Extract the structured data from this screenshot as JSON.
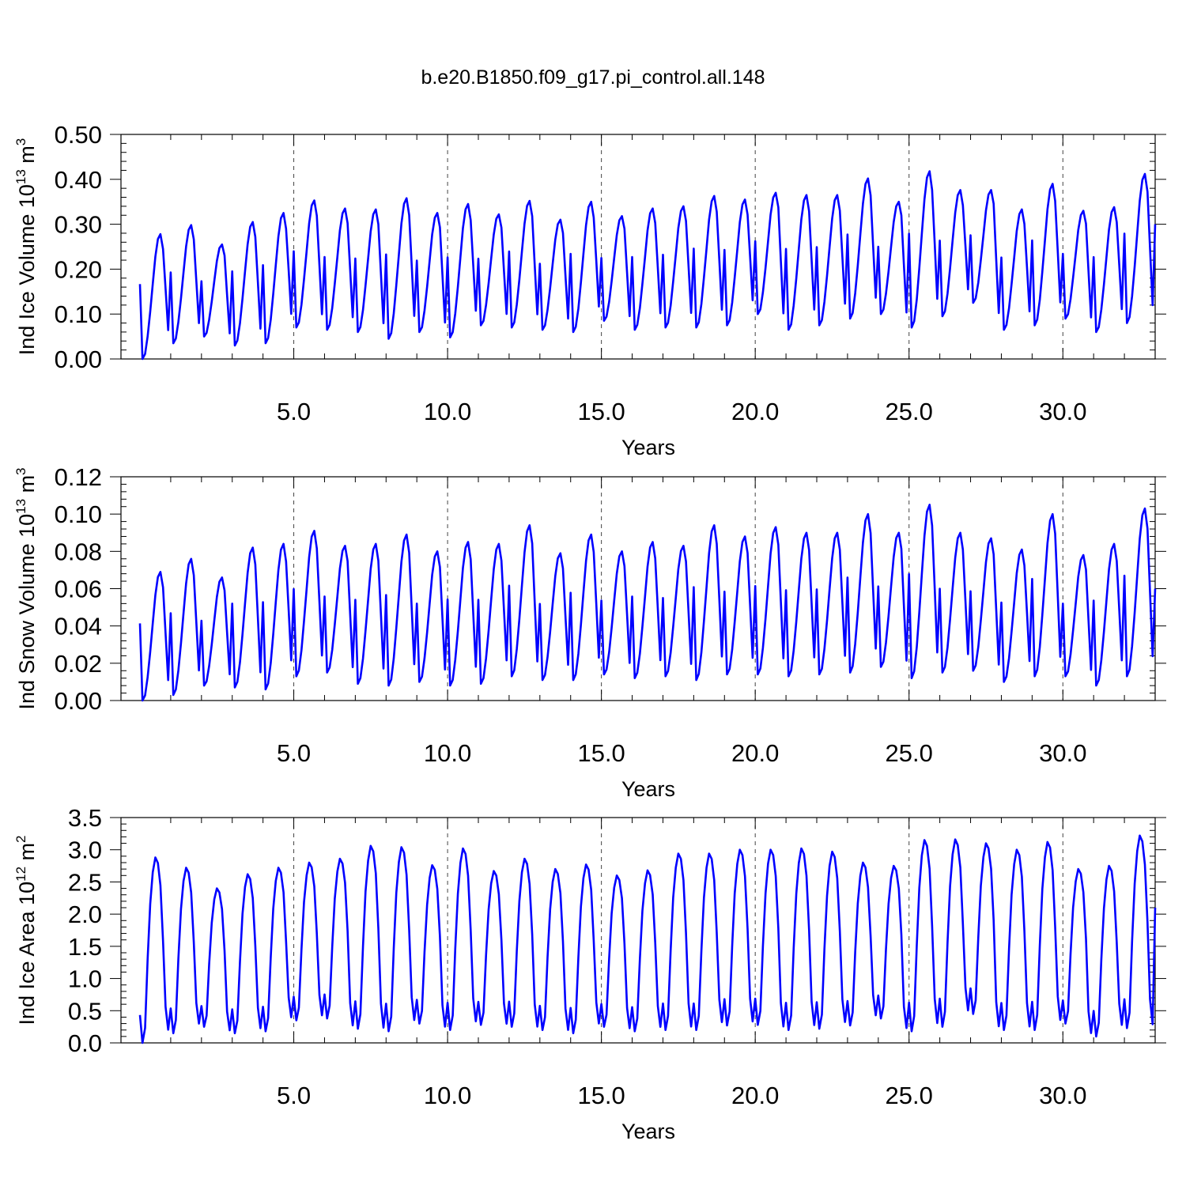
{
  "figure": {
    "title": "b.e20.B1850.f09_g17.pi_control.all.148"
  },
  "chart_data": [
    {
      "type": "line",
      "id": "ice-volume",
      "xlabel": "Years",
      "ylabel": "Ind Ice Volume 10",
      "ylabel_exp": "13",
      "ylabel_unit": " m",
      "ylabel_unit_exp": "3",
      "xlim": [
        0,
        33
      ],
      "ylim": [
        0,
        0.5
      ],
      "xticks": [
        5,
        10,
        15,
        20,
        25,
        30
      ],
      "xticklabels": [
        "5.0",
        "10.0",
        "15.0",
        "20.0",
        "25.0",
        "30.0"
      ],
      "yticks": [
        0,
        0.1,
        0.2,
        0.3,
        0.4,
        0.5
      ],
      "yticklabels": [
        "0.00",
        "0.10",
        "0.20",
        "0.30",
        "0.40",
        "0.50"
      ],
      "grid": "x-major-dashed",
      "color": "#0000ff",
      "min_month": 1,
      "seasonal_shape": [
        0.6,
        0.0,
        0.04,
        0.18,
        0.38,
        0.6,
        0.82,
        0.96,
        1.0,
        0.88,
        0.5,
        0.12
      ],
      "annual_min": [
        0.0,
        0.035,
        0.05,
        0.03,
        0.035,
        0.07,
        0.065,
        0.06,
        0.045,
        0.06,
        0.048,
        0.075,
        0.07,
        0.065,
        0.06,
        0.085,
        0.065,
        0.07,
        0.07,
        0.075,
        0.1,
        0.065,
        0.075,
        0.09,
        0.1,
        0.07,
        0.095,
        0.125,
        0.065,
        0.075,
        0.09,
        0.06,
        0.08
      ],
      "annual_max": [
        0.278,
        0.298,
        0.255,
        0.305,
        0.325,
        0.353,
        0.335,
        0.333,
        0.358,
        0.325,
        0.345,
        0.322,
        0.352,
        0.31,
        0.35,
        0.318,
        0.335,
        0.34,
        0.363,
        0.355,
        0.37,
        0.365,
        0.365,
        0.402,
        0.35,
        0.418,
        0.376,
        0.376,
        0.333,
        0.39,
        0.33,
        0.338,
        0.412
      ],
      "last_value": 0.3
    },
    {
      "type": "line",
      "id": "snow-volume",
      "xlabel": "Years",
      "ylabel": "Ind Snow Volume 10",
      "ylabel_exp": "13",
      "ylabel_unit": " m",
      "ylabel_unit_exp": "3",
      "xlim": [
        0,
        33
      ],
      "ylim": [
        0,
        0.12
      ],
      "xticks": [
        5,
        10,
        15,
        20,
        25,
        30
      ],
      "xticklabels": [
        "5.0",
        "10.0",
        "15.0",
        "20.0",
        "25.0",
        "30.0"
      ],
      "yticks": [
        0,
        0.02,
        0.04,
        0.06,
        0.08,
        0.1,
        0.12
      ],
      "yticklabels": [
        "0.00",
        "0.02",
        "0.04",
        "0.06",
        "0.08",
        "0.10",
        "0.12"
      ],
      "grid": "x-major-dashed",
      "color": "#0000ff",
      "min_month": 1,
      "seasonal_shape": [
        0.6,
        0.0,
        0.04,
        0.18,
        0.38,
        0.6,
        0.82,
        0.96,
        1.0,
        0.88,
        0.5,
        0.12
      ],
      "annual_min": [
        0.0,
        0.003,
        0.008,
        0.007,
        0.006,
        0.013,
        0.015,
        0.009,
        0.008,
        0.01,
        0.008,
        0.009,
        0.013,
        0.011,
        0.011,
        0.014,
        0.012,
        0.013,
        0.011,
        0.014,
        0.014,
        0.013,
        0.014,
        0.015,
        0.018,
        0.012,
        0.015,
        0.016,
        0.01,
        0.013,
        0.013,
        0.008,
        0.013
      ],
      "annual_max": [
        0.069,
        0.076,
        0.066,
        0.082,
        0.084,
        0.091,
        0.083,
        0.084,
        0.089,
        0.08,
        0.085,
        0.084,
        0.094,
        0.079,
        0.089,
        0.08,
        0.085,
        0.083,
        0.094,
        0.088,
        0.093,
        0.09,
        0.09,
        0.1,
        0.09,
        0.105,
        0.09,
        0.087,
        0.081,
        0.1,
        0.078,
        0.084,
        0.103
      ],
      "last_value": 0.06
    },
    {
      "type": "line",
      "id": "ice-area",
      "xlabel": "Years",
      "ylabel": "Ind Ice Area 10",
      "ylabel_exp": "12",
      "ylabel_unit": " m",
      "ylabel_unit_exp": "2",
      "xlim": [
        0,
        33
      ],
      "ylim": [
        0,
        3.5
      ],
      "xticks": [
        5,
        10,
        15,
        20,
        25,
        30
      ],
      "xticklabels": [
        "5.0",
        "10.0",
        "15.0",
        "20.0",
        "25.0",
        "30.0"
      ],
      "yticks": [
        0,
        0.5,
        1.0,
        1.5,
        2.0,
        2.5,
        3.0,
        3.5
      ],
      "yticklabels": [
        "0.0",
        "0.5",
        "1.0",
        "1.5",
        "2.0",
        "2.5",
        "3.0",
        "3.5"
      ],
      "grid": "x-major-dashed",
      "color": "#0000ff",
      "min_month": 1,
      "seasonal_shape": [
        0.15,
        0.0,
        0.08,
        0.45,
        0.75,
        0.92,
        1.0,
        0.97,
        0.85,
        0.55,
        0.15,
        0.02
      ],
      "annual_min": [
        0.0,
        0.15,
        0.25,
        0.15,
        0.18,
        0.35,
        0.38,
        0.22,
        0.18,
        0.3,
        0.2,
        0.28,
        0.25,
        0.2,
        0.15,
        0.25,
        0.18,
        0.2,
        0.2,
        0.27,
        0.28,
        0.2,
        0.22,
        0.27,
        0.38,
        0.18,
        0.25,
        0.45,
        0.2,
        0.2,
        0.3,
        0.1,
        0.23
      ],
      "annual_max": [
        2.88,
        2.72,
        2.4,
        2.62,
        2.72,
        2.8,
        2.86,
        3.06,
        3.04,
        2.76,
        3.02,
        2.67,
        2.86,
        2.7,
        2.77,
        2.6,
        2.68,
        2.94,
        2.94,
        3.0,
        3.0,
        3.02,
        2.97,
        2.8,
        2.75,
        3.15,
        3.16,
        3.1,
        3.0,
        3.12,
        2.7,
        2.75,
        3.22
      ],
      "last_value": 2.1
    }
  ]
}
